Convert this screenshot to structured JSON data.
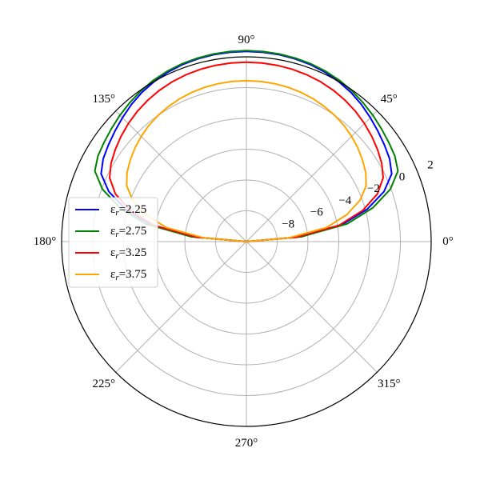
{
  "chart_data": {
    "type": "line",
    "projection": "polar",
    "theta_unit": "degrees",
    "r_scale": "linear",
    "rlim": [
      -10,
      2
    ],
    "r_ticks": [
      -8,
      -6,
      -4,
      -2,
      0,
      2
    ],
    "r_tick_labels": [
      "−8",
      "−6",
      "−4",
      "−2",
      "0",
      "2"
    ],
    "theta_ticks": [
      0,
      45,
      90,
      135,
      180,
      225,
      270,
      315
    ],
    "theta_tick_labels": [
      "0°",
      "45°",
      "90°",
      "135°",
      "180°",
      "225°",
      "270°",
      "315°"
    ],
    "grid": true,
    "legend_position": "center-left",
    "theta": [
      0,
      5,
      10,
      15,
      20,
      25,
      30,
      35,
      40,
      45,
      50,
      55,
      60,
      65,
      70,
      75,
      80,
      85,
      90,
      95,
      100,
      105,
      110,
      115,
      120,
      125,
      130,
      135,
      140,
      145,
      150,
      155,
      160,
      165,
      170,
      175,
      180
    ],
    "series": [
      {
        "name": "εr=2.25",
        "color": "#0000ff",
        "r": [
          -10.0,
          -6.73,
          -3.71,
          -1.88,
          -0.49,
          0.41,
          0.74,
          0.94,
          1.15,
          1.38,
          1.62,
          1.83,
          1.99,
          2.12,
          2.22,
          2.28,
          2.32,
          2.34,
          2.35,
          2.34,
          2.32,
          2.28,
          2.22,
          2.12,
          1.99,
          1.83,
          1.62,
          1.38,
          1.15,
          0.94,
          0.74,
          0.41,
          -0.49,
          -1.88,
          -3.71,
          -6.73,
          -10.0
        ]
      },
      {
        "name": "εr=2.75",
        "color": "#008000",
        "r": [
          -10.0,
          -6.42,
          -3.35,
          -1.49,
          -0.05,
          0.86,
          1.13,
          1.27,
          1.43,
          1.61,
          1.78,
          1.95,
          2.09,
          2.2,
          2.28,
          2.33,
          2.37,
          2.39,
          2.4,
          2.39,
          2.37,
          2.33,
          2.28,
          2.2,
          2.09,
          1.95,
          1.78,
          1.61,
          1.43,
          1.27,
          1.13,
          0.86,
          -0.05,
          -1.49,
          -3.35,
          -6.42,
          -10.0
        ]
      },
      {
        "name": "εr=3.25",
        "color": "#ff0000",
        "r": [
          -10.0,
          -6.79,
          -3.88,
          -2.18,
          -0.95,
          -0.2,
          0.15,
          0.4,
          0.63,
          0.84,
          1.03,
          1.19,
          1.33,
          1.44,
          1.52,
          1.58,
          1.62,
          1.64,
          1.65,
          1.64,
          1.62,
          1.58,
          1.52,
          1.44,
          1.33,
          1.19,
          1.03,
          0.84,
          0.63,
          0.4,
          0.15,
          -0.2,
          -0.95,
          -2.18,
          -3.88,
          -6.79,
          -10.0
        ]
      },
      {
        "name": "εr=3.75",
        "color": "#ffa500",
        "r": [
          -10.0,
          -7.24,
          -4.71,
          -3.25,
          -2.15,
          -1.42,
          -1.05,
          -0.79,
          -0.55,
          -0.34,
          -0.15,
          0.0,
          0.13,
          0.24,
          0.32,
          0.38,
          0.42,
          0.44,
          0.45,
          0.44,
          0.42,
          0.38,
          0.32,
          0.24,
          0.13,
          0.0,
          -0.15,
          -0.34,
          -0.55,
          -0.79,
          -1.05,
          -1.42,
          -2.15,
          -3.25,
          -4.71,
          -7.24,
          -10.0
        ]
      }
    ]
  }
}
